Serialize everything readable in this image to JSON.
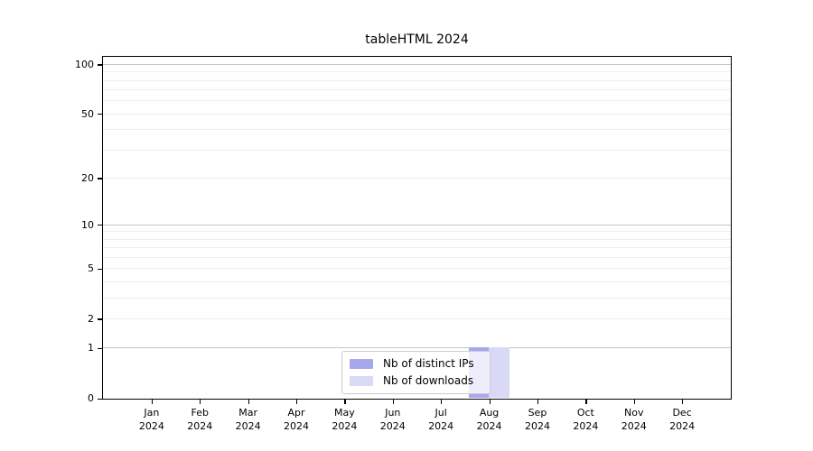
{
  "chart_data": {
    "type": "bar",
    "title": "tableHTML 2024",
    "categories": [
      "Jan 2024",
      "Feb 2024",
      "Mar 2024",
      "Apr 2024",
      "May 2024",
      "Jun 2024",
      "Jul 2024",
      "Aug 2024",
      "Sep 2024",
      "Oct 2024",
      "Nov 2024",
      "Dec 2024"
    ],
    "x_tick_lines": [
      {
        "month": "Jan",
        "year": "2024"
      },
      {
        "month": "Feb",
        "year": "2024"
      },
      {
        "month": "Mar",
        "year": "2024"
      },
      {
        "month": "Apr",
        "year": "2024"
      },
      {
        "month": "May",
        "year": "2024"
      },
      {
        "month": "Jun",
        "year": "2024"
      },
      {
        "month": "Jul",
        "year": "2024"
      },
      {
        "month": "Aug",
        "year": "2024"
      },
      {
        "month": "Sep",
        "year": "2024"
      },
      {
        "month": "Oct",
        "year": "2024"
      },
      {
        "month": "Nov",
        "year": "2024"
      },
      {
        "month": "Dec",
        "year": "2024"
      }
    ],
    "series": [
      {
        "name": "Nb of distinct IPs",
        "color": "#a7a7ee",
        "values": [
          0,
          0,
          0,
          0,
          0,
          0,
          0,
          1,
          0,
          0,
          0,
          0
        ]
      },
      {
        "name": "Nb of downloads",
        "color": "#d8d8f7",
        "values": [
          0,
          0,
          0,
          0,
          0,
          0,
          0,
          1,
          0,
          0,
          0,
          0
        ]
      }
    ],
    "xlabel": "",
    "ylabel": "",
    "yscale": "log1p",
    "ylim": [
      0,
      110.4
    ],
    "y_ticks": [
      {
        "value": 100,
        "label": "100"
      },
      {
        "value": 50,
        "label": "50"
      },
      {
        "value": 20,
        "label": "20"
      },
      {
        "value": 10,
        "label": "10"
      },
      {
        "value": 5,
        "label": "5"
      },
      {
        "value": 2,
        "label": "2"
      },
      {
        "value": 1,
        "label": "1"
      },
      {
        "value": 0,
        "label": "0"
      }
    ],
    "y_major_gridlines": [
      1,
      10,
      100
    ],
    "y_minor_gridlines": [
      2,
      3,
      4,
      5,
      6,
      7,
      8,
      9,
      20,
      30,
      40,
      50,
      60,
      70,
      80,
      90
    ],
    "grid": "on",
    "legend": {
      "position": "lower center",
      "items": [
        {
          "label": "Nb of distinct IPs",
          "color": "#a7a7ee"
        },
        {
          "label": "Nb of downloads",
          "color": "#d8d8f7"
        }
      ]
    },
    "colors": {
      "major_grid": "#c6c6c6",
      "minor_grid": "#ededed",
      "spine": "#000000",
      "background": "#ffffff"
    }
  }
}
